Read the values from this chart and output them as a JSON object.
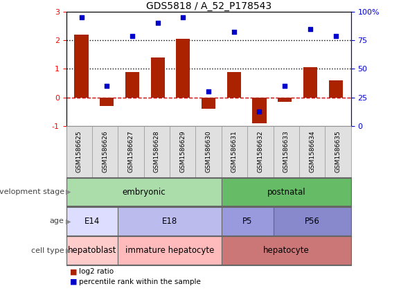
{
  "title": "GDS5818 / A_52_P178543",
  "samples": [
    "GSM1586625",
    "GSM1586626",
    "GSM1586627",
    "GSM1586628",
    "GSM1586629",
    "GSM1586630",
    "GSM1586631",
    "GSM1586632",
    "GSM1586633",
    "GSM1586634",
    "GSM1586635"
  ],
  "log2_ratio": [
    2.2,
    -0.3,
    0.9,
    1.4,
    2.05,
    -0.4,
    0.9,
    -0.9,
    -0.15,
    1.05,
    0.6
  ],
  "percentile_left": [
    2.8,
    0.4,
    2.15,
    2.6,
    2.8,
    0.2,
    2.3,
    -0.5,
    0.4,
    2.4,
    2.15
  ],
  "bar_color": "#aa2200",
  "dot_color": "#0000cc",
  "ylim_left": [
    -1,
    3
  ],
  "ylim_right": [
    0,
    100
  ],
  "yticks_left": [
    -1,
    0,
    1,
    2,
    3
  ],
  "yticks_right": [
    0,
    25,
    50,
    75,
    100
  ],
  "hline_values": [
    1,
    2
  ],
  "zero_line_color": "#cc0000",
  "development_stage_groups": [
    {
      "label": "embryonic",
      "start": 0,
      "end": 5,
      "color": "#aaddaa"
    },
    {
      "label": "postnatal",
      "start": 6,
      "end": 10,
      "color": "#66bb66"
    }
  ],
  "age_groups": [
    {
      "label": "E14",
      "start": 0,
      "end": 1,
      "color": "#ddddff"
    },
    {
      "label": "E18",
      "start": 2,
      "end": 5,
      "color": "#bbbbee"
    },
    {
      "label": "P5",
      "start": 6,
      "end": 7,
      "color": "#9999dd"
    },
    {
      "label": "P56",
      "start": 8,
      "end": 10,
      "color": "#8888cc"
    }
  ],
  "cell_type_groups": [
    {
      "label": "hepatoblast",
      "start": 0,
      "end": 1,
      "color": "#ffcccc"
    },
    {
      "label": "immature hepatocyte",
      "start": 2,
      "end": 5,
      "color": "#ffbbbb"
    },
    {
      "label": "hepatocyte",
      "start": 6,
      "end": 10,
      "color": "#cc7777"
    }
  ],
  "row_labels": [
    "development stage",
    "age",
    "cell type"
  ],
  "legend_items": [
    {
      "label": "log2 ratio",
      "color": "#aa2200"
    },
    {
      "label": "percentile rank within the sample",
      "color": "#0000cc"
    }
  ],
  "bg_color": "#ffffff",
  "right_axis_color": "#0000cc"
}
